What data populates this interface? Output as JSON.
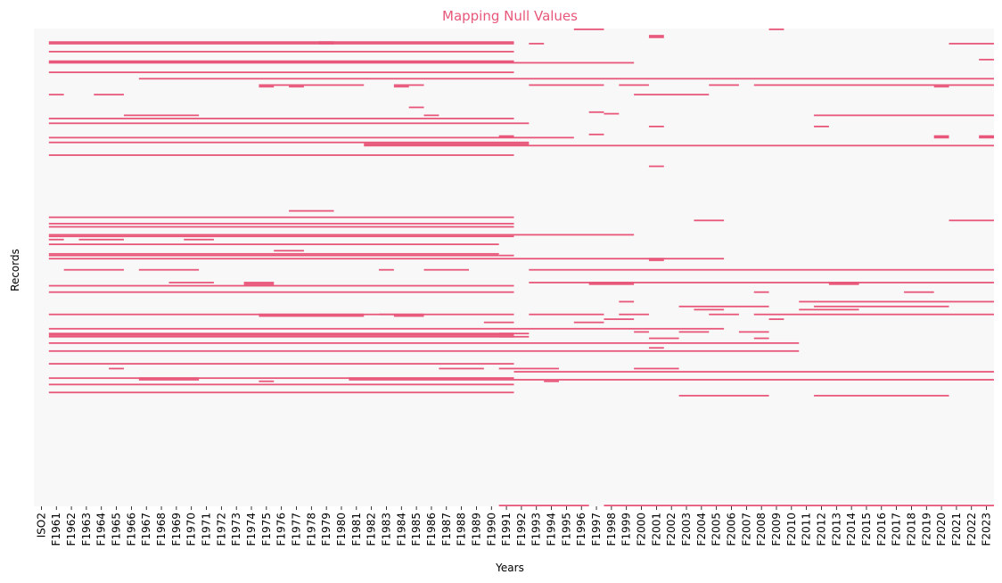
{
  "chart_data": {
    "type": "heatmap",
    "title": "Mapping Null Values",
    "xlabel": "Years",
    "ylabel": "Records",
    "categories": [
      "ISO2",
      "F1961",
      "F1962",
      "F1963",
      "F1964",
      "F1965",
      "F1966",
      "F1967",
      "F1968",
      "F1969",
      "F1970",
      "F1971",
      "F1972",
      "F1973",
      "F1974",
      "F1975",
      "F1976",
      "F1977",
      "F1978",
      "F1979",
      "F1980",
      "F1981",
      "F1982",
      "F1983",
      "F1984",
      "F1985",
      "F1986",
      "F1987",
      "F1988",
      "F1989",
      "F1990",
      "F1991",
      "F1992",
      "F1993",
      "F1994",
      "F1995",
      "F1996",
      "F1997",
      "F1998",
      "F1999",
      "F2000",
      "F2001",
      "F2002",
      "F2003",
      "F2004",
      "F2005",
      "F2006",
      "F2007",
      "F2008",
      "F2009",
      "F2010",
      "F2011",
      "F2012",
      "F2013",
      "F2014",
      "F2015",
      "F2016",
      "F2017",
      "F2018",
      "F2019",
      "F2020",
      "F2021",
      "F2022",
      "F2023"
    ],
    "n_records": 300,
    "colors": {
      "null": "#e8577a",
      "present": "#f8f8f8",
      "title": "#e8577a"
    },
    "grid": false,
    "legend": "none",
    "null_segments": [
      {
        "r": 0,
        "c0": 36,
        "c1": 37
      },
      {
        "r": 0,
        "c0": 49,
        "c1": 49
      },
      {
        "r": 4,
        "c0": 41,
        "c1": 41
      },
      {
        "r": 5,
        "c0": 41,
        "c1": 41
      },
      {
        "r": 8,
        "c0": 1,
        "c1": 31
      },
      {
        "r": 9,
        "c0": 1,
        "c1": 31
      },
      {
        "r": 8,
        "c0": 19,
        "c1": 19
      },
      {
        "r": 9,
        "c0": 19,
        "c1": 19
      },
      {
        "r": 9,
        "c0": 33,
        "c1": 33
      },
      {
        "r": 9,
        "c0": 61,
        "c1": 63
      },
      {
        "r": 14,
        "c0": 1,
        "c1": 31
      },
      {
        "r": 19,
        "c0": 63,
        "c1": 63
      },
      {
        "r": 20,
        "c0": 1,
        "c1": 31
      },
      {
        "r": 21,
        "c0": 1,
        "c1": 31
      },
      {
        "r": 21,
        "c0": 32,
        "c1": 39
      },
      {
        "r": 27,
        "c0": 1,
        "c1": 31
      },
      {
        "r": 31,
        "c0": 7,
        "c1": 63
      },
      {
        "r": 35,
        "c0": 15,
        "c1": 21
      },
      {
        "r": 35,
        "c0": 24,
        "c1": 25
      },
      {
        "r": 35,
        "c0": 33,
        "c1": 37
      },
      {
        "r": 35,
        "c0": 39,
        "c1": 40
      },
      {
        "r": 35,
        "c0": 45,
        "c1": 46
      },
      {
        "r": 35,
        "c0": 48,
        "c1": 63
      },
      {
        "r": 36,
        "c0": 15,
        "c1": 15
      },
      {
        "r": 36,
        "c0": 17,
        "c1": 17
      },
      {
        "r": 36,
        "c0": 24,
        "c1": 24
      },
      {
        "r": 36,
        "c0": 60,
        "c1": 60
      },
      {
        "r": 41,
        "c0": 1,
        "c1": 1
      },
      {
        "r": 41,
        "c0": 4,
        "c1": 5
      },
      {
        "r": 41,
        "c0": 40,
        "c1": 44
      },
      {
        "r": 49,
        "c0": 25,
        "c1": 25
      },
      {
        "r": 52,
        "c0": 37,
        "c1": 37
      },
      {
        "r": 53,
        "c0": 38,
        "c1": 38
      },
      {
        "r": 54,
        "c0": 6,
        "c1": 10
      },
      {
        "r": 54,
        "c0": 26,
        "c1": 26
      },
      {
        "r": 54,
        "c0": 52,
        "c1": 63
      },
      {
        "r": 56,
        "c0": 1,
        "c1": 31
      },
      {
        "r": 59,
        "c0": 1,
        "c1": 32
      },
      {
        "r": 61,
        "c0": 41,
        "c1": 41
      },
      {
        "r": 61,
        "c0": 52,
        "c1": 52
      },
      {
        "r": 66,
        "c0": 37,
        "c1": 37
      },
      {
        "r": 67,
        "c0": 31,
        "c1": 31
      },
      {
        "r": 67,
        "c0": 60,
        "c1": 60
      },
      {
        "r": 67,
        "c0": 63,
        "c1": 63
      },
      {
        "r": 68,
        "c0": 1,
        "c1": 35
      },
      {
        "r": 68,
        "c0": 60,
        "c1": 60
      },
      {
        "r": 68,
        "c0": 63,
        "c1": 63
      },
      {
        "r": 71,
        "c0": 1,
        "c1": 32
      },
      {
        "r": 72,
        "c0": 22,
        "c1": 32
      },
      {
        "r": 73,
        "c0": 22,
        "c1": 63
      },
      {
        "r": 79,
        "c0": 1,
        "c1": 31
      },
      {
        "r": 86,
        "c0": 41,
        "c1": 41
      },
      {
        "r": 114,
        "c0": 17,
        "c1": 19
      },
      {
        "r": 118,
        "c0": 1,
        "c1": 31
      },
      {
        "r": 120,
        "c0": 44,
        "c1": 45
      },
      {
        "r": 120,
        "c0": 61,
        "c1": 63
      },
      {
        "r": 122,
        "c0": 1,
        "c1": 31
      },
      {
        "r": 124,
        "c0": 1,
        "c1": 31
      },
      {
        "r": 129,
        "c0": 1,
        "c1": 31
      },
      {
        "r": 130,
        "c0": 1,
        "c1": 31
      },
      {
        "r": 129,
        "c0": 32,
        "c1": 39
      },
      {
        "r": 132,
        "c0": 1,
        "c1": 1
      },
      {
        "r": 132,
        "c0": 3,
        "c1": 5
      },
      {
        "r": 132,
        "c0": 10,
        "c1": 11
      },
      {
        "r": 135,
        "c0": 1,
        "c1": 30
      },
      {
        "r": 139,
        "c0": 16,
        "c1": 17
      },
      {
        "r": 141,
        "c0": 1,
        "c1": 30
      },
      {
        "r": 142,
        "c0": 1,
        "c1": 30
      },
      {
        "r": 142,
        "c0": 31,
        "c1": 31
      },
      {
        "r": 144,
        "c0": 1,
        "c1": 45
      },
      {
        "r": 144,
        "c0": 41,
        "c1": 41
      },
      {
        "r": 145,
        "c0": 41,
        "c1": 41
      },
      {
        "r": 151,
        "c0": 2,
        "c1": 5
      },
      {
        "r": 151,
        "c0": 7,
        "c1": 10
      },
      {
        "r": 151,
        "c0": 23,
        "c1": 23
      },
      {
        "r": 151,
        "c0": 26,
        "c1": 28
      },
      {
        "r": 151,
        "c0": 33,
        "c1": 63
      },
      {
        "r": 159,
        "c0": 9,
        "c1": 11
      },
      {
        "r": 159,
        "c0": 14,
        "c1": 15
      },
      {
        "r": 159,
        "c0": 33,
        "c1": 63
      },
      {
        "r": 159,
        "c0": 37,
        "c1": 39
      },
      {
        "r": 159,
        "c0": 53,
        "c1": 54
      },
      {
        "r": 160,
        "c0": 14,
        "c1": 15
      },
      {
        "r": 160,
        "c0": 37,
        "c1": 39
      },
      {
        "r": 160,
        "c0": 53,
        "c1": 54
      },
      {
        "r": 161,
        "c0": 1,
        "c1": 31
      },
      {
        "r": 165,
        "c0": 1,
        "c1": 31
      },
      {
        "r": 165,
        "c0": 48,
        "c1": 48
      },
      {
        "r": 165,
        "c0": 58,
        "c1": 59
      },
      {
        "r": 171,
        "c0": 39,
        "c1": 39
      },
      {
        "r": 171,
        "c0": 51,
        "c1": 63
      },
      {
        "r": 174,
        "c0": 43,
        "c1": 48
      },
      {
        "r": 174,
        "c0": 52,
        "c1": 60
      },
      {
        "r": 176,
        "c0": 44,
        "c1": 45
      },
      {
        "r": 176,
        "c0": 51,
        "c1": 54
      },
      {
        "r": 179,
        "c0": 1,
        "c1": 31
      },
      {
        "r": 179,
        "c0": 15,
        "c1": 21
      },
      {
        "r": 179,
        "c0": 23,
        "c1": 25
      },
      {
        "r": 179,
        "c0": 33,
        "c1": 37
      },
      {
        "r": 179,
        "c0": 39,
        "c1": 40
      },
      {
        "r": 179,
        "c0": 45,
        "c1": 46
      },
      {
        "r": 179,
        "c0": 48,
        "c1": 63
      },
      {
        "r": 180,
        "c0": 15,
        "c1": 21
      },
      {
        "r": 180,
        "c0": 24,
        "c1": 25
      },
      {
        "r": 182,
        "c0": 38,
        "c1": 39
      },
      {
        "r": 182,
        "c0": 49,
        "c1": 49
      },
      {
        "r": 184,
        "c0": 30,
        "c1": 31
      },
      {
        "r": 184,
        "c0": 36,
        "c1": 37
      },
      {
        "r": 188,
        "c0": 1,
        "c1": 45
      },
      {
        "r": 190,
        "c0": 40,
        "c1": 40
      },
      {
        "r": 190,
        "c0": 43,
        "c1": 44
      },
      {
        "r": 190,
        "c0": 47,
        "c1": 48
      },
      {
        "r": 191,
        "c0": 1,
        "c1": 31
      },
      {
        "r": 192,
        "c0": 1,
        "c1": 31
      },
      {
        "r": 193,
        "c0": 1,
        "c1": 31
      },
      {
        "r": 191,
        "c0": 31,
        "c1": 32
      },
      {
        "r": 193,
        "c0": 31,
        "c1": 32
      },
      {
        "r": 194,
        "c0": 41,
        "c1": 42
      },
      {
        "r": 194,
        "c0": 48,
        "c1": 48
      },
      {
        "r": 197,
        "c0": 1,
        "c1": 50
      },
      {
        "r": 200,
        "c0": 41,
        "c1": 41
      },
      {
        "r": 202,
        "c0": 1,
        "c1": 50
      },
      {
        "r": 210,
        "c0": 1,
        "c1": 31
      },
      {
        "r": 213,
        "c0": 5,
        "c1": 5
      },
      {
        "r": 213,
        "c0": 27,
        "c1": 29
      },
      {
        "r": 213,
        "c0": 31,
        "c1": 34
      },
      {
        "r": 213,
        "c0": 40,
        "c1": 42
      },
      {
        "r": 215,
        "c0": 32,
        "c1": 63
      },
      {
        "r": 219,
        "c0": 1,
        "c1": 31
      },
      {
        "r": 219,
        "c0": 7,
        "c1": 10
      },
      {
        "r": 219,
        "c0": 21,
        "c1": 31
      },
      {
        "r": 220,
        "c0": 7,
        "c1": 10
      },
      {
        "r": 220,
        "c0": 21,
        "c1": 31
      },
      {
        "r": 220,
        "c0": 32,
        "c1": 63
      },
      {
        "r": 221,
        "c0": 15,
        "c1": 15
      },
      {
        "r": 221,
        "c0": 34,
        "c1": 34
      },
      {
        "r": 223,
        "c0": 1,
        "c1": 31
      },
      {
        "r": 228,
        "c0": 1,
        "c1": 31
      },
      {
        "r": 230,
        "c0": 43,
        "c1": 48
      },
      {
        "r": 230,
        "c0": 52,
        "c1": 60
      },
      {
        "r": 299,
        "c0": 31,
        "c1": 36
      },
      {
        "r": 299,
        "c0": 38,
        "c1": 63
      }
    ]
  }
}
